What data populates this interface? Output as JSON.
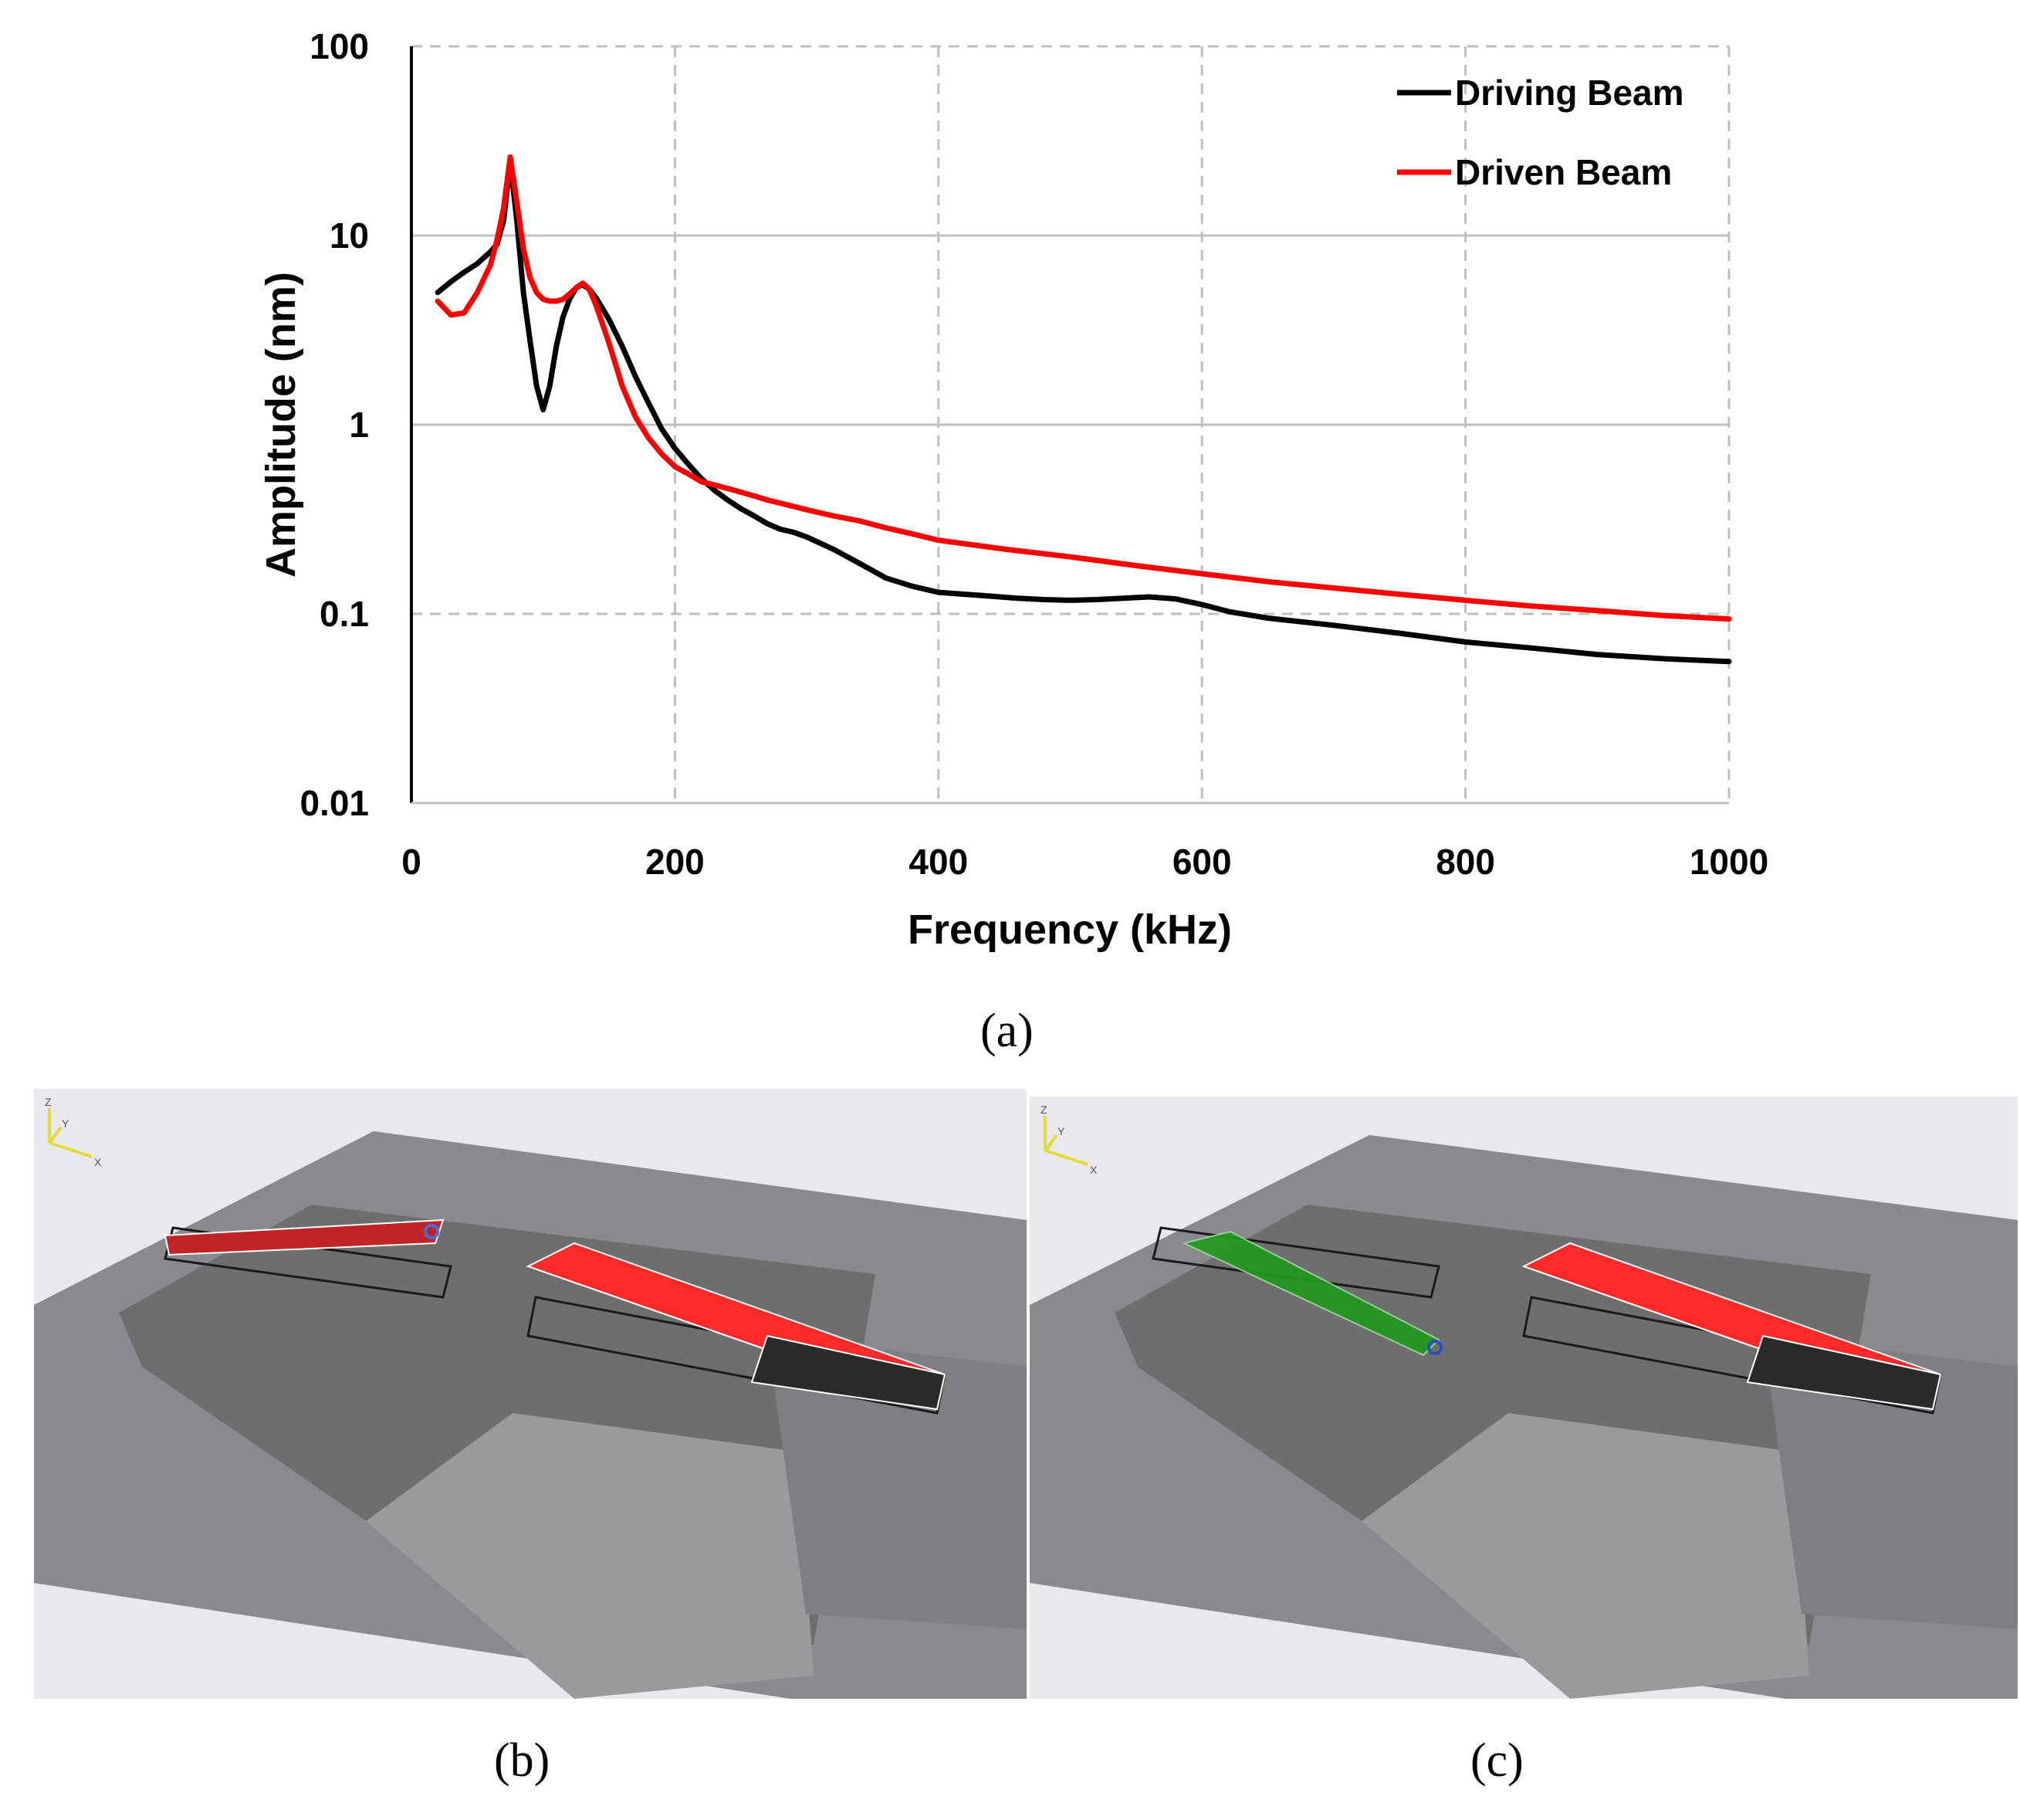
{
  "chart_data": {
    "type": "line",
    "xlabel": "Frequency (kHz)",
    "ylabel": "Amplitude (nm)",
    "yscale": "log",
    "xlim": [
      0,
      1000
    ],
    "ylim": [
      0.01,
      100
    ],
    "x_ticks": [
      "0",
      "200",
      "400",
      "600",
      "800",
      "1000"
    ],
    "y_ticks": [
      "0.01",
      "0.1",
      "1",
      "10",
      "100"
    ],
    "grid": true,
    "legend_position": "top-right",
    "series": [
      {
        "name": "Driving Beam",
        "color": "#000000",
        "x": [
          20,
          30,
          40,
          50,
          60,
          65,
          70,
          75,
          80,
          85,
          90,
          95,
          100,
          105,
          110,
          115,
          120,
          125,
          130,
          135,
          140,
          150,
          160,
          170,
          180,
          190,
          200,
          210,
          220,
          230,
          240,
          250,
          260,
          270,
          280,
          290,
          300,
          320,
          340,
          360,
          380,
          400,
          420,
          440,
          460,
          480,
          500,
          520,
          540,
          560,
          580,
          600,
          620,
          650,
          700,
          750,
          800,
          850,
          900,
          950,
          1000
        ],
        "y": [
          5.0,
          5.7,
          6.4,
          7.1,
          8.2,
          9.0,
          12.0,
          24.5,
          12.0,
          5.0,
          2.8,
          1.6,
          1.2,
          1.6,
          2.6,
          3.7,
          4.6,
          5.3,
          5.5,
          5.2,
          4.7,
          3.6,
          2.6,
          1.8,
          1.3,
          0.95,
          0.75,
          0.62,
          0.52,
          0.45,
          0.4,
          0.36,
          0.33,
          0.3,
          0.28,
          0.27,
          0.255,
          0.22,
          0.185,
          0.155,
          0.14,
          0.13,
          0.127,
          0.124,
          0.121,
          0.119,
          0.118,
          0.119,
          0.121,
          0.123,
          0.12,
          0.112,
          0.103,
          0.095,
          0.087,
          0.079,
          0.071,
          0.066,
          0.061,
          0.058,
          0.056
        ]
      },
      {
        "name": "Driven Beam",
        "color": "#ff0000",
        "x": [
          20,
          30,
          40,
          50,
          60,
          65,
          70,
          75,
          80,
          85,
          90,
          95,
          100,
          105,
          110,
          115,
          120,
          125,
          130,
          135,
          140,
          150,
          160,
          170,
          180,
          190,
          200,
          210,
          220,
          230,
          240,
          250,
          260,
          270,
          280,
          290,
          300,
          320,
          340,
          360,
          380,
          400,
          450,
          500,
          550,
          600,
          650,
          700,
          750,
          800,
          850,
          900,
          950,
          1000
        ],
        "y": [
          4.5,
          3.8,
          3.9,
          5.0,
          7.0,
          9.5,
          14.0,
          26.0,
          15.0,
          8.5,
          6.0,
          5.0,
          4.6,
          4.5,
          4.5,
          4.6,
          4.9,
          5.3,
          5.6,
          5.2,
          4.3,
          2.7,
          1.6,
          1.1,
          0.85,
          0.7,
          0.6,
          0.55,
          0.5,
          0.48,
          0.46,
          0.44,
          0.42,
          0.4,
          0.385,
          0.37,
          0.355,
          0.33,
          0.31,
          0.285,
          0.265,
          0.245,
          0.22,
          0.2,
          0.18,
          0.163,
          0.148,
          0.137,
          0.127,
          0.118,
          0.11,
          0.104,
          0.098,
          0.094
        ]
      }
    ]
  },
  "captions": {
    "a": "(a)",
    "b": "(b)",
    "c": "(c)"
  },
  "panels": {
    "b": {
      "axis_labels": {
        "z": "Z",
        "y": "Y",
        "x": "X"
      }
    },
    "c": {
      "axis_labels": {
        "z": "Z",
        "y": "Y",
        "x": "X"
      }
    }
  },
  "colors": {
    "grid": "#bfbfbf",
    "substrate": "#8a898d",
    "trench": "#6e6e6e",
    "pad": "#9a999c",
    "mode_red": "#ff2a2a",
    "mode_green": "#1f9a1f",
    "mesh_dark": "#2a2a2a"
  }
}
